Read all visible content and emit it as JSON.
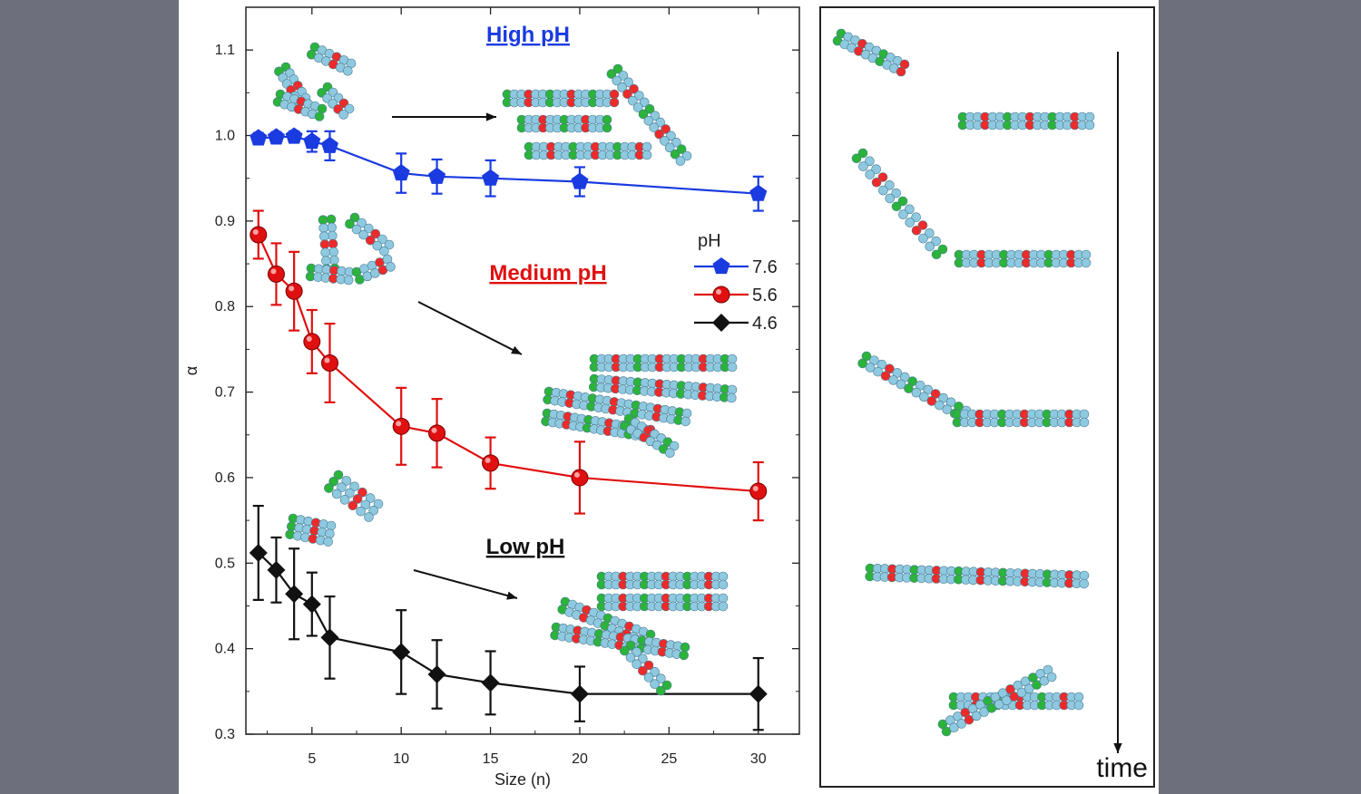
{
  "chart_data": {
    "type": "line",
    "xlabel": "Size (n)",
    "ylabel": "α",
    "xlim": [
      1.3,
      32.3
    ],
    "ylim": [
      0.3,
      1.15
    ],
    "xticks": [
      5,
      10,
      15,
      20,
      25,
      30
    ],
    "yticks": [
      0.3,
      0.4,
      0.5,
      0.6,
      0.7,
      0.8,
      0.9,
      1.0,
      1.1
    ],
    "x": [
      2,
      3,
      4,
      5,
      6,
      10,
      12,
      15,
      20,
      30
    ],
    "legend_title": "pH",
    "legend_position": "right-center",
    "series": [
      {
        "name": "7.6",
        "color": "#1a3be0",
        "marker": "pentagon",
        "values": [
          0.997,
          0.998,
          0.999,
          0.993,
          0.988,
          0.956,
          0.952,
          0.95,
          0.946,
          0.932
        ],
        "errors": [
          0.006,
          0.006,
          0.006,
          0.012,
          0.017,
          0.023,
          0.02,
          0.021,
          0.017,
          0.02
        ]
      },
      {
        "name": "5.6",
        "color": "#e01010",
        "marker": "circle",
        "values": [
          0.884,
          0.838,
          0.818,
          0.759,
          0.734,
          0.66,
          0.652,
          0.617,
          0.6,
          0.584
        ],
        "errors": [
          0.028,
          0.036,
          0.046,
          0.037,
          0.046,
          0.045,
          0.04,
          0.03,
          0.042,
          0.034
        ]
      },
      {
        "name": "4.6",
        "color": "#111111",
        "marker": "diamond",
        "values": [
          0.512,
          0.492,
          0.464,
          0.452,
          0.413,
          0.396,
          0.37,
          0.36,
          0.347,
          0.347
        ],
        "errors": [
          0.055,
          0.038,
          0.053,
          0.037,
          0.048,
          0.049,
          0.04,
          0.037,
          0.032,
          0.042
        ]
      }
    ],
    "annotations": [
      {
        "text": "High pH",
        "color": "#1a3be0"
      },
      {
        "text": "Medium pH",
        "color": "#e01010"
      },
      {
        "text": "Low pH",
        "color": "#111111"
      }
    ]
  },
  "side_panel": {
    "time_label": "time"
  },
  "colors": {
    "bead": "#8ec9e0",
    "bead_red": "#ee2a2a",
    "bead_green": "#2bb33a",
    "background": "#6e6f7c"
  }
}
